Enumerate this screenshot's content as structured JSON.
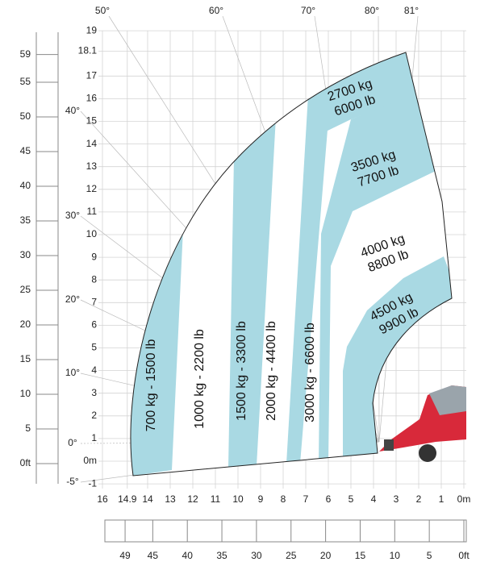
{
  "left_ft_scale": [
    "59",
    "55",
    "50",
    "45",
    "40",
    "35",
    "30",
    "25",
    "20",
    "15",
    "10",
    "5",
    "0ft"
  ],
  "height_m_scale": [
    "19",
    "18.1",
    "17",
    "16",
    "15",
    "14",
    "13",
    "12",
    "11",
    "10",
    "9",
    "8",
    "7",
    "6",
    "5",
    "4",
    "3",
    "2",
    "1",
    "0m",
    "-1"
  ],
  "reach_m_scale": [
    "16",
    "14.9",
    "14",
    "13",
    "12",
    "11",
    "10",
    "9",
    "8",
    "7",
    "6",
    "5",
    "4",
    "3",
    "2",
    "1",
    "0m"
  ],
  "reach_ft_scale": [
    "49",
    "45",
    "40",
    "35",
    "30",
    "25",
    "20",
    "15",
    "10",
    "5",
    "0ft"
  ],
  "top_angles": [
    "50°",
    "60°",
    "70°",
    "80°",
    "81°"
  ],
  "left_angles": [
    "40°",
    "30°",
    "20°",
    "10°",
    "0°",
    "-5°"
  ],
  "vertical_zones": [
    "700 kg - 1500 lb",
    "1000 kg - 2200 lb",
    "1500 kg - 3300 lb",
    "2000 kg - 4400 lb",
    "3000 kg - 6600 lb"
  ],
  "arc_zones": [
    [
      "2700 kg",
      "6000 lb"
    ],
    [
      "3500 kg",
      "7700 lb"
    ],
    [
      "4000 kg",
      "8800 lb"
    ],
    [
      "4500 kg",
      "9900 lb"
    ]
  ]
}
